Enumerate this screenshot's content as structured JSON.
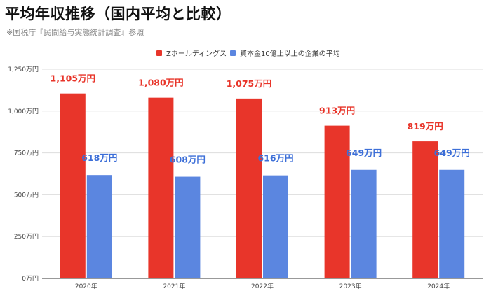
{
  "header": {
    "title": "平均年収推移（国内平均と比較）",
    "subtitle": "※国税庁『民間給与実態統計調査』参照"
  },
  "legend": [
    {
      "label": "Zホールディングス",
      "color": "#e8352a"
    },
    {
      "label": "資本金10億上以上の企業の平均",
      "color": "#5b86e0"
    }
  ],
  "chart_data": {
    "type": "bar",
    "title": "平均年収推移（国内平均と比較）",
    "subtitle": "※国税庁『民間給与実態統計調査』参照",
    "categories": [
      "2020年",
      "2021年",
      "2022年",
      "2023年",
      "2024年"
    ],
    "series": [
      {
        "name": "Zホールディングス",
        "color": "#e8352a",
        "label_color": "#e8352a",
        "values": [
          1105,
          1080,
          1075,
          913,
          819
        ],
        "data_labels": [
          "1,105万円",
          "1,080万円",
          "1,075万円",
          "913万円",
          "819万円"
        ]
      },
      {
        "name": "資本金10億上以上の企業の平均",
        "color": "#5b86e0",
        "label_color": "#3d6fd8",
        "values": [
          618,
          608,
          616,
          649,
          649
        ],
        "data_labels": [
          "618万円",
          "608万円",
          "616万円",
          "649万円",
          "649万円"
        ]
      }
    ],
    "ylim": [
      0,
      1250
    ],
    "yticks": [
      0,
      250,
      500,
      750,
      1000,
      1250
    ],
    "ytick_labels": [
      "0万円",
      "250万円",
      "500万円",
      "750万円",
      "1,000万円",
      "1,250万円"
    ],
    "xlabel": "",
    "ylabel": "",
    "grid": true,
    "legend_position": "top-center"
  }
}
